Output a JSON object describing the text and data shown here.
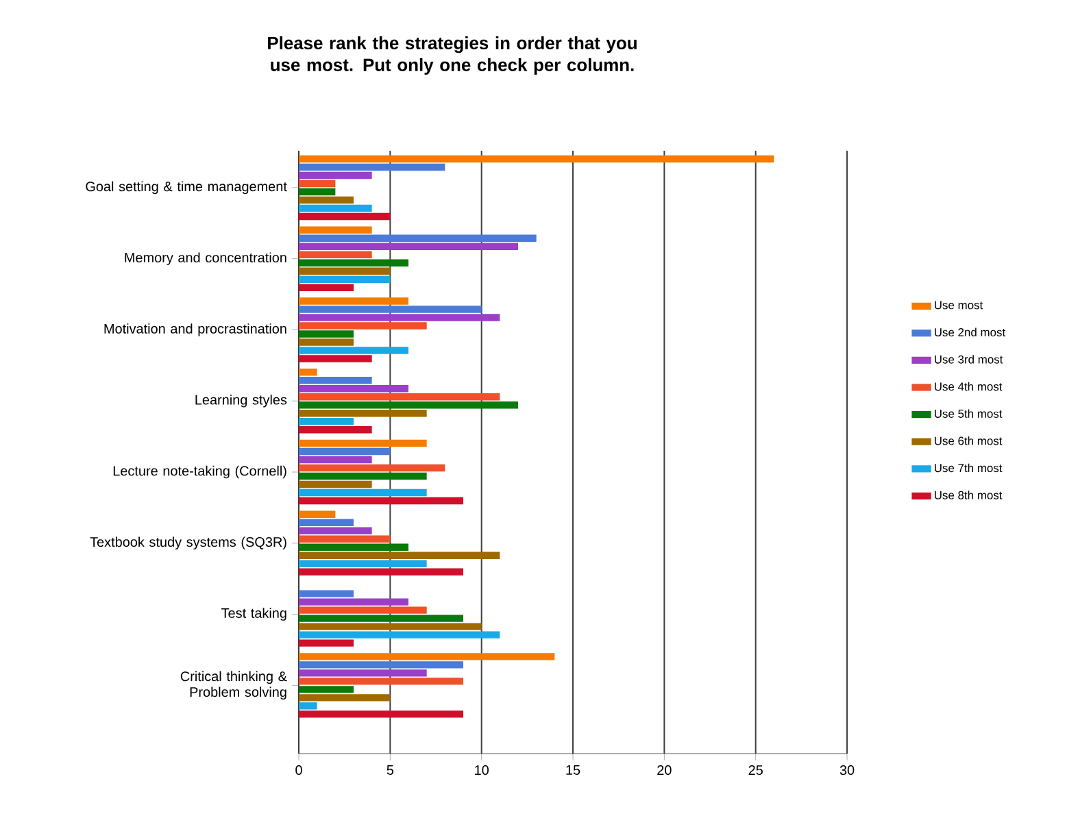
{
  "chart_data": {
    "type": "bar",
    "orientation": "horizontal",
    "title": "Please rank the strategies in order that you use most. Put only one check per column.",
    "categories": [
      "Goal setting & time management",
      "Memory and concentration",
      "Motivation and procrastination",
      "Learning styles",
      "Lecture note-taking (Cornell)",
      "Textbook study systems (SQ3R)",
      "Test taking",
      "Critical thinking & Problem solving"
    ],
    "series": [
      {
        "name": "Use most",
        "color": "#f57c00",
        "values": [
          26,
          4,
          6,
          1,
          7,
          2,
          0,
          14
        ]
      },
      {
        "name": "Use 2nd most",
        "color": "#4a7bd9",
        "values": [
          8,
          13,
          10,
          4,
          5,
          3,
          3,
          9
        ]
      },
      {
        "name": "Use 3rd most",
        "color": "#9b3fc8",
        "values": [
          4,
          12,
          11,
          6,
          4,
          4,
          6,
          7
        ]
      },
      {
        "name": "Use 4th most",
        "color": "#f0502a",
        "values": [
          2,
          4,
          7,
          11,
          8,
          5,
          7,
          9
        ]
      },
      {
        "name": "Use 5th most",
        "color": "#0a7a0a",
        "values": [
          2,
          6,
          3,
          12,
          7,
          6,
          9,
          3
        ]
      },
      {
        "name": "Use 6th most",
        "color": "#a06a00",
        "values": [
          3,
          5,
          3,
          7,
          4,
          11,
          10,
          5
        ]
      },
      {
        "name": "Use 7th most",
        "color": "#1aa9e8",
        "values": [
          4,
          5,
          6,
          3,
          7,
          7,
          11,
          1
        ]
      },
      {
        "name": "Use 8th most",
        "color": "#d0102a",
        "values": [
          5,
          3,
          4,
          4,
          9,
          9,
          3,
          9
        ]
      }
    ],
    "xlim": [
      0,
      30
    ],
    "xticks": [
      0,
      5,
      10,
      15,
      20,
      25,
      30
    ],
    "grid": "x",
    "legend": "right"
  }
}
